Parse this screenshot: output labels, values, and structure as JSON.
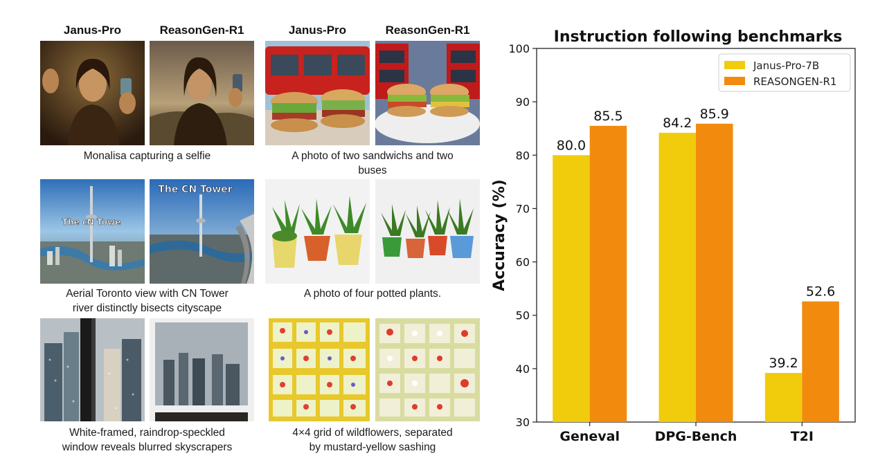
{
  "column_headers": {
    "left_janus": "Janus-Pro",
    "left_reasongen": "ReasonGen-R1",
    "right_janus": "Janus-Pro",
    "right_reasongen": "ReasonGen-R1"
  },
  "examples": {
    "monalisa": [
      "Monalisa capturing a selfie"
    ],
    "sandwiches": [
      "A photo of two sandwichs and two",
      "buses"
    ],
    "toronto": [
      "Aerial Toronto view with CN Tower",
      "river distinctly bisects cityscape"
    ],
    "plants": [
      "A photo of four potted plants."
    ],
    "window": [
      "White-framed, raindrop-speckled",
      "window reveals blurred skyscrapers"
    ],
    "wildflowers": [
      "4×4 grid of wildflowers, separated",
      "by mustard-yellow sashing"
    ]
  },
  "image_text": {
    "janus_tower_sign": "The cN Towe",
    "reasongen_tower_sign": "The CN Tower"
  },
  "chart_data": {
    "type": "bar",
    "title": "Instruction following benchmarks",
    "ylabel": "Accuracy (%)",
    "xlabel": "",
    "categories": [
      "Geneval",
      "DPG-Bench",
      "T2I"
    ],
    "series": [
      {
        "name": "Janus-Pro-7B",
        "values": [
          80.0,
          84.2,
          39.2
        ],
        "color": "#f0cc0c"
      },
      {
        "name": "REASONGEN-R1",
        "values": [
          85.5,
          85.9,
          52.6
        ],
        "color": "#f28a0e"
      }
    ],
    "value_labels": [
      [
        "80.0",
        "84.2",
        "39.2"
      ],
      [
        "85.5",
        "85.9",
        "52.6"
      ]
    ],
    "ylim": [
      30,
      100
    ],
    "yticks": [
      30,
      40,
      50,
      60,
      70,
      80,
      90,
      100
    ],
    "grid": false,
    "legend_position": "top-right"
  }
}
